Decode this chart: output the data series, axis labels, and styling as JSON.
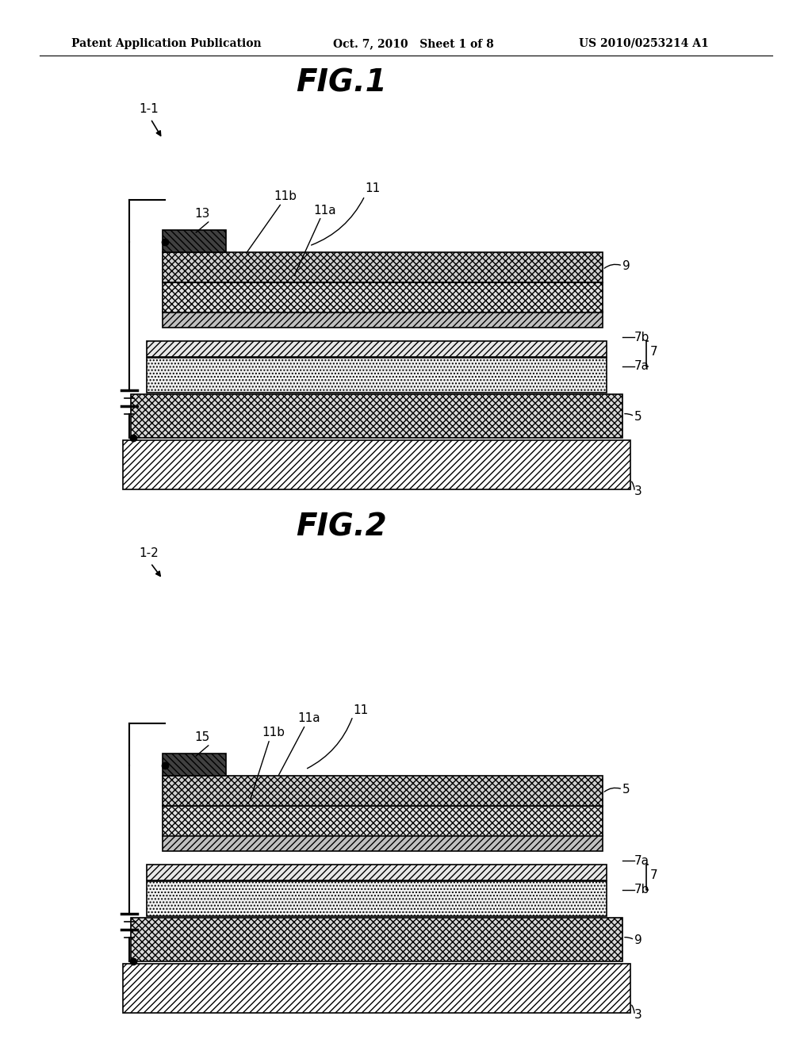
{
  "header_left": "Patent Application Publication",
  "header_center": "Oct. 7, 2010   Sheet 1 of 8",
  "header_right": "US 2010/0253214 A1",
  "fig1_title": "FIG.1",
  "fig2_title": "FIG.2",
  "fig1_label": "1-1",
  "fig2_label": "1-2",
  "background": "#ffffff",
  "line_color": "#000000"
}
